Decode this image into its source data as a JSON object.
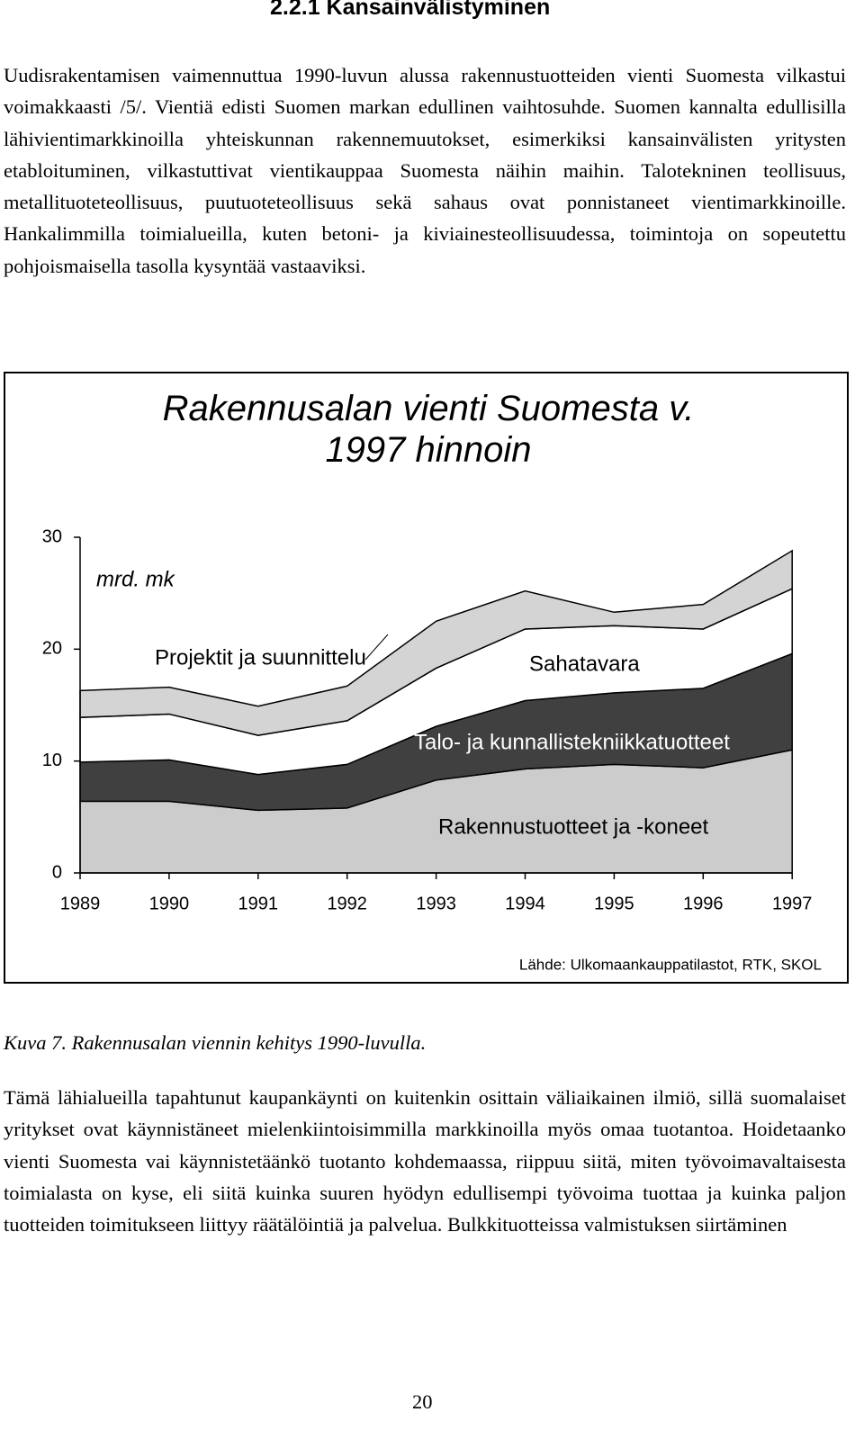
{
  "header": {
    "title": "2.2.1 Kansainvälistyminen"
  },
  "paragraphs": [
    "Uudisrakentamisen vaimennuttua 1990-luvun alussa rakennustuotteiden vienti Suomesta vilkastui voimakkaasti /5/. Vientiä edisti Suomen markan edullinen vaihtosuhde. Suomen kannalta edullisilla lähivientimarkkinoilla yhteiskunnan rakennemuutokset, esimerkiksi kansainvälisten yritysten etabloituminen, vilkastuttivat vientikauppaa Suomesta näihin maihin. Talotekninen teollisuus, metallituoteteollisuus, puutuoteteollisuus sekä sahaus ovat ponnistaneet vientimarkkinoille. Hankalimmilla toimialueilla, kuten betoni- ja kiviainesteollisuudessa, toimintoja on sopeutettu pohjoismaisella tasolla kysyntää vastaaviksi.",
    "Tämä lähialueilla tapahtunut kaupankäynti on kuitenkin osittain väliaikainen ilmiö, sillä suomalaiset yritykset ovat käynnistäneet mielenkiintoisimmilla markkinoilla myös omaa tuotantoa. Hoidetaanko vienti Suomesta vai käynnistetäänkö tuotanto kohdemaassa, riippuu siitä, miten työvoimavaltaisesta toimialasta on kyse, eli siitä kuinka suuren hyödyn edullisempi työvoima tuottaa ja kuinka paljon tuotteiden toimitukseen liittyy räätälöintiä ja palvelua. Bulkkituotteissa valmistuksen siirtäminen"
  ],
  "caption": "Kuva 7. Rakennusalan viennin kehitys 1990-luvulla.",
  "page_number": "20",
  "chart_data": {
    "type": "stacked-area",
    "title": "Rakennusalan vienti Suomesta v. 1997 hinnoin",
    "y_unit": "mrd. mk",
    "source": "Lähde: Ulkomaankauppatilastot, RTK, SKOL",
    "categories": [
      "1989",
      "1990",
      "1991",
      "1992",
      "1993",
      "1994",
      "1995",
      "1996",
      "1997"
    ],
    "ylim": [
      0,
      30
    ],
    "yticks": [
      0,
      10,
      20,
      30
    ],
    "grid": false,
    "series": [
      {
        "name": "Rakennustuotteet ja -koneet",
        "color": "#cccccc",
        "values": [
          6.4,
          6.4,
          5.6,
          5.8,
          8.3,
          9.3,
          9.7,
          9.4,
          11.0
        ]
      },
      {
        "name": "Talo- ja kunnallistekniikkatuotteet",
        "color": "#404040",
        "values": [
          3.5,
          3.7,
          3.2,
          3.9,
          4.8,
          6.1,
          6.4,
          7.1,
          8.6
        ]
      },
      {
        "name": "Sahatavara",
        "color": "#ffffff",
        "values": [
          4.0,
          4.1,
          3.5,
          3.9,
          5.2,
          6.4,
          6.0,
          5.3,
          5.8
        ]
      },
      {
        "name": "Projektit ja suunnittelu",
        "color": "#d4d4d4",
        "values": [
          2.4,
          2.4,
          2.6,
          3.1,
          4.2,
          3.4,
          1.2,
          2.2,
          3.4
        ]
      }
    ]
  }
}
